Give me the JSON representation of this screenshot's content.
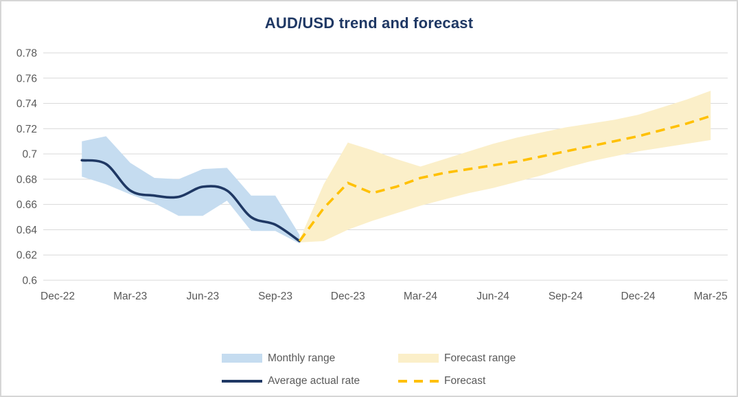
{
  "title": "AUD/USD trend and forecast",
  "colors": {
    "title_text": "#1F3864",
    "actual_line": "#1F3864",
    "monthly_band": "#C5DCF0",
    "forecast_line": "#FFC000",
    "forecast_band": "#FBEFC9",
    "gridline": "#D9D9D9",
    "axis_text": "#595959",
    "legend_text": "#595959",
    "border": "#D6D6D6",
    "background": "#FFFFFF"
  },
  "legend": {
    "items": [
      {
        "label": "Monthly range",
        "swatch": "band",
        "color_key": "monthly_band"
      },
      {
        "label": "Forecast range",
        "swatch": "band",
        "color_key": "forecast_band"
      },
      {
        "label": "Average actual rate",
        "swatch": "line",
        "color_key": "actual_line"
      },
      {
        "label": "Forecast",
        "swatch": "dashed",
        "color_key": "forecast_line"
      }
    ]
  },
  "chart_data": {
    "type": "line",
    "title": "AUD/USD trend and forecast",
    "xlabel": "",
    "ylabel": "",
    "ylim": [
      0.6,
      0.78
    ],
    "y_tick_step": 0.02,
    "grid": "horizontal",
    "legend_position": "bottom",
    "y_ticks": [
      {
        "label": "0.78",
        "value": 0.78
      },
      {
        "label": "0.76",
        "value": 0.76
      },
      {
        "label": "0.74",
        "value": 0.74
      },
      {
        "label": "0.72",
        "value": 0.72
      },
      {
        "label": "0.7",
        "value": 0.7
      },
      {
        "label": "0.68",
        "value": 0.68
      },
      {
        "label": "0.66",
        "value": 0.66
      },
      {
        "label": "0.64",
        "value": 0.64
      },
      {
        "label": "0.62",
        "value": 0.62
      },
      {
        "label": "0.6",
        "value": 0.6
      }
    ],
    "x_tick_labels": [
      "Dec-22",
      "Mar-23",
      "Jun-23",
      "Sep-23",
      "Dec-23",
      "Mar-24",
      "Jun-24",
      "Sep-24",
      "Dec-24",
      "Mar-25"
    ],
    "all_months": [
      "Dec-22",
      "Jan-23",
      "Feb-23",
      "Mar-23",
      "Apr-23",
      "May-23",
      "Jun-23",
      "Jul-23",
      "Aug-23",
      "Sep-23",
      "Oct-23",
      "Nov-23",
      "Dec-23",
      "Jan-24",
      "Feb-24",
      "Mar-24",
      "Apr-24",
      "May-24",
      "Jun-24",
      "Jul-24",
      "Aug-24",
      "Sep-24",
      "Oct-24",
      "Nov-24",
      "Dec-24",
      "Jan-25",
      "Feb-25",
      "Mar-25"
    ],
    "series": [
      {
        "name": "Monthly range",
        "kind": "band",
        "color_key": "monthly_band",
        "months": [
          "Jan-23",
          "Feb-23",
          "Mar-23",
          "Apr-23",
          "May-23",
          "Jun-23",
          "Jul-23",
          "Aug-23",
          "Sep-23",
          "Oct-23"
        ],
        "high": [
          0.71,
          0.714,
          0.693,
          0.681,
          0.68,
          0.688,
          0.689,
          0.667,
          0.667,
          0.636
        ],
        "low": [
          0.682,
          0.676,
          0.668,
          0.661,
          0.651,
          0.651,
          0.663,
          0.639,
          0.639,
          0.629
        ]
      },
      {
        "name": "Forecast range",
        "kind": "band",
        "color_key": "forecast_band",
        "months": [
          "Oct-23",
          "Nov-23",
          "Dec-23",
          "Jan-24",
          "Feb-24",
          "Mar-24",
          "Apr-24",
          "May-24",
          "Jun-24",
          "Jul-24",
          "Aug-24",
          "Sep-24",
          "Oct-24",
          "Nov-24",
          "Dec-24",
          "Jan-25",
          "Feb-25",
          "Mar-25"
        ],
        "high": [
          0.632,
          0.676,
          0.709,
          0.703,
          0.696,
          0.69,
          0.696,
          0.702,
          0.708,
          0.713,
          0.717,
          0.721,
          0.724,
          0.727,
          0.731,
          0.737,
          0.743,
          0.75
        ],
        "low": [
          0.63,
          0.631,
          0.64,
          0.647,
          0.653,
          0.659,
          0.664,
          0.669,
          0.673,
          0.678,
          0.683,
          0.689,
          0.694,
          0.698,
          0.702,
          0.705,
          0.708,
          0.711
        ]
      },
      {
        "name": "Average actual rate",
        "kind": "line",
        "line_style": "smooth-solid",
        "color_key": "actual_line",
        "months": [
          "Jan-23",
          "Feb-23",
          "Mar-23",
          "Apr-23",
          "May-23",
          "Jun-23",
          "Jul-23",
          "Aug-23",
          "Sep-23",
          "Oct-23"
        ],
        "values": [
          0.695,
          0.692,
          0.671,
          0.667,
          0.666,
          0.674,
          0.671,
          0.65,
          0.644,
          0.631
        ]
      },
      {
        "name": "Forecast",
        "kind": "line",
        "line_style": "dashed",
        "color_key": "forecast_line",
        "months": [
          "Oct-23",
          "Nov-23",
          "Dec-23",
          "Jan-24",
          "Feb-24",
          "Mar-24",
          "Apr-24",
          "May-24",
          "Jun-24",
          "Jul-24",
          "Aug-24",
          "Sep-24",
          "Oct-24",
          "Nov-24",
          "Dec-24",
          "Jan-25",
          "Feb-25",
          "Mar-25"
        ],
        "values": [
          0.631,
          0.657,
          0.677,
          0.669,
          0.674,
          0.681,
          0.685,
          0.688,
          0.691,
          0.694,
          0.698,
          0.702,
          0.706,
          0.71,
          0.714,
          0.719,
          0.724,
          0.73
        ]
      }
    ]
  }
}
